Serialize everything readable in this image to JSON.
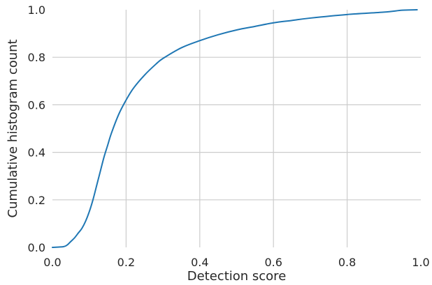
{
  "chart_data": {
    "type": "line",
    "title": "",
    "xlabel": "Detection score",
    "ylabel": "Cumulative histogram count",
    "xlim": [
      0.0,
      1.0
    ],
    "ylim": [
      0.0,
      1.0
    ],
    "grid": true,
    "legend": "none",
    "x_ticks": [
      "0.0",
      "0.2",
      "0.4",
      "0.6",
      "0.8",
      "1.0"
    ],
    "y_ticks": [
      "0.0",
      "0.2",
      "0.4",
      "0.6",
      "0.8",
      "1.0"
    ],
    "series": [
      {
        "color": "#1f77b4",
        "x": [
          0.0,
          0.03,
          0.04,
          0.05,
          0.06,
          0.07,
          0.08,
          0.09,
          0.1,
          0.11,
          0.12,
          0.13,
          0.14,
          0.15,
          0.16,
          0.18,
          0.2,
          0.22,
          0.25,
          0.28,
          0.3,
          0.35,
          0.4,
          0.45,
          0.5,
          0.55,
          0.6,
          0.65,
          0.7,
          0.8,
          0.9,
          0.95,
          0.99
        ],
        "y": [
          0.0,
          0.003,
          0.01,
          0.025,
          0.04,
          0.06,
          0.08,
          0.11,
          0.15,
          0.2,
          0.26,
          0.32,
          0.38,
          0.43,
          0.48,
          0.56,
          0.62,
          0.67,
          0.725,
          0.77,
          0.795,
          0.84,
          0.87,
          0.895,
          0.915,
          0.93,
          0.945,
          0.955,
          0.965,
          0.98,
          0.99,
          0.998,
          1.0
        ]
      }
    ]
  }
}
